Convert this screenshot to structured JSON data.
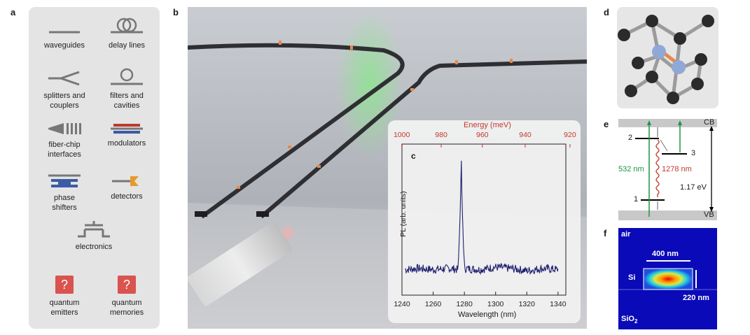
{
  "panel_labels": {
    "a": "a",
    "b": "b",
    "c": "c",
    "d": "d",
    "e": "e",
    "f": "f"
  },
  "components": [
    {
      "label": "waveguides",
      "icon": "waveguide-icon"
    },
    {
      "label": "delay lines",
      "icon": "delay-line-icon"
    },
    {
      "label": "splitters and\ncouplers",
      "icon": "splitter-icon"
    },
    {
      "label": "filters and\ncavities",
      "icon": "ring-filter-icon"
    },
    {
      "label": "fiber-chip\ninterfaces",
      "icon": "fiber-interface-icon"
    },
    {
      "label": "modulators",
      "icon": "modulator-icon"
    },
    {
      "label": "phase\nshifters",
      "icon": "phase-shifter-icon"
    },
    {
      "label": "detectors",
      "icon": "detector-icon"
    },
    {
      "label": "electronics",
      "icon": "transistor-icon"
    },
    {
      "label": "quantum\nemitters",
      "icon": "question-icon",
      "symbol": "?"
    },
    {
      "label": "quantum\nmemories",
      "icon": "question-icon",
      "symbol": "?"
    }
  ],
  "chart_data": {
    "type": "line",
    "xlabel": "Wavelength (nm)",
    "ylabel": "PL  (arb. units)",
    "top_axis_label": "Energy (meV)",
    "xlim": [
      1240,
      1345
    ],
    "x_ticks": [
      1240,
      1260,
      1280,
      1300,
      1320,
      1340
    ],
    "top_ticks": [
      1000,
      980,
      960,
      940,
      920
    ],
    "top_axis_color": "#c0392b",
    "line_color": "#1f1f70",
    "series": [
      {
        "x": [
          1242,
          1250,
          1260,
          1270,
          1276,
          1277.5,
          1278,
          1278.5,
          1280,
          1290,
          1300,
          1310,
          1315,
          1320,
          1330,
          1340
        ],
        "y": [
          0.05,
          0.06,
          0.05,
          0.06,
          0.05,
          0.6,
          1.0,
          0.6,
          0.06,
          0.05,
          0.07,
          0.06,
          0.05,
          0.04,
          0.06,
          0.05
        ]
      }
    ],
    "peak_wavelength": 1278
  },
  "level_diagram": {
    "cb": "CB",
    "vb": "VB",
    "level_2": "2",
    "level_3": "3",
    "level_1": "1",
    "pump": "532 nm",
    "emission": "1278 nm",
    "gap": "1.17 eV",
    "pump_color": "#1a9641",
    "emission_color": "#c0392b"
  },
  "mode_profile": {
    "air": "air",
    "si": "Si",
    "sio2": "SiO",
    "sio2_sub": "2",
    "width": "400 nm",
    "height": "220 nm"
  }
}
